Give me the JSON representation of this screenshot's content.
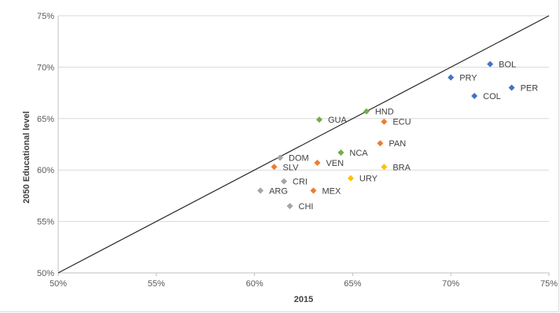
{
  "chart_data": {
    "type": "scatter",
    "title": "",
    "xlabel": "2015",
    "ylabel": "2050 Educational level",
    "xlim": [
      0.5,
      0.75
    ],
    "ylim": [
      0.5,
      0.75
    ],
    "x_ticks": [
      0.5,
      0.55,
      0.6,
      0.65,
      0.7,
      0.75
    ],
    "y_ticks": [
      0.5,
      0.55,
      0.6,
      0.65,
      0.7,
      0.75
    ],
    "x_tick_labels": [
      "50%",
      "55%",
      "60%",
      "65%",
      "70%",
      "75%"
    ],
    "y_tick_labels": [
      "50%",
      "55%",
      "60%",
      "65%",
      "70%",
      "75%"
    ],
    "grid": "horizontal",
    "legend": "none",
    "reference_line": {
      "from": [
        0.5,
        0.5
      ],
      "to": [
        0.75,
        0.75
      ]
    },
    "colors": {
      "blue": "#4472c4",
      "orange": "#ed7d31",
      "green": "#70ad47",
      "gray": "#a5a5a5",
      "yellow": "#ffc000"
    },
    "points": [
      {
        "label": "BOL",
        "x": 0.72,
        "y": 0.703,
        "color": "#4472c4"
      },
      {
        "label": "PRY",
        "x": 0.7,
        "y": 0.69,
        "color": "#4472c4"
      },
      {
        "label": "PER",
        "x": 0.731,
        "y": 0.68,
        "color": "#4472c4"
      },
      {
        "label": "COL",
        "x": 0.712,
        "y": 0.672,
        "color": "#4472c4"
      },
      {
        "label": "HND",
        "x": 0.657,
        "y": 0.657,
        "color": "#70ad47"
      },
      {
        "label": "GUA",
        "x": 0.633,
        "y": 0.649,
        "color": "#70ad47"
      },
      {
        "label": "ECU",
        "x": 0.666,
        "y": 0.647,
        "color": "#ed7d31"
      },
      {
        "label": "PAN",
        "x": 0.664,
        "y": 0.626,
        "color": "#ed7d31"
      },
      {
        "label": "NCA",
        "x": 0.644,
        "y": 0.617,
        "color": "#70ad47"
      },
      {
        "label": "DOM",
        "x": 0.613,
        "y": 0.612,
        "color": "#a5a5a5"
      },
      {
        "label": "VEN",
        "x": 0.632,
        "y": 0.607,
        "color": "#ed7d31"
      },
      {
        "label": "SLV",
        "x": 0.61,
        "y": 0.603,
        "color": "#ed7d31"
      },
      {
        "label": "BRA",
        "x": 0.666,
        "y": 0.603,
        "color": "#ffc000"
      },
      {
        "label": "URY",
        "x": 0.649,
        "y": 0.592,
        "color": "#ffc000"
      },
      {
        "label": "CRI",
        "x": 0.615,
        "y": 0.589,
        "color": "#a5a5a5"
      },
      {
        "label": "ARG",
        "x": 0.603,
        "y": 0.58,
        "color": "#a5a5a5"
      },
      {
        "label": "MEX",
        "x": 0.63,
        "y": 0.58,
        "color": "#ed7d31"
      },
      {
        "label": "CHI",
        "x": 0.618,
        "y": 0.565,
        "color": "#a5a5a5"
      }
    ]
  }
}
